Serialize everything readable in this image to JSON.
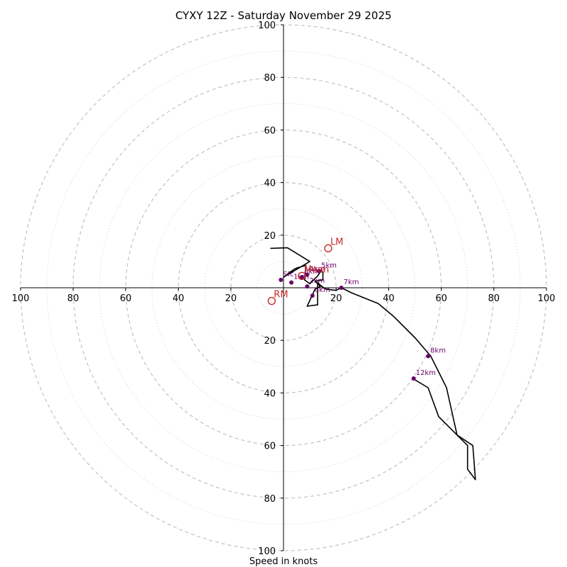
{
  "chart": {
    "title": "CYXY 12Z - Saturday November 29 2025",
    "xlabel": "Speed in knots"
  },
  "chart_data": {
    "type": "scatter",
    "title": "CYXY 12Z - Saturday November 29 2025",
    "xlabel": "Speed in knots",
    "ylabel": "",
    "xlim": [
      -100,
      100
    ],
    "ylim": [
      -100,
      100
    ],
    "major_rings": [
      20,
      40,
      60,
      80,
      100
    ],
    "minor_rings": [
      10,
      30,
      50,
      70,
      90
    ],
    "tick_labels": [
      "20",
      "40",
      "60",
      "80",
      "100"
    ],
    "ring_colors": {
      "major": "#bdbdbd",
      "minor": "#d6d6d6"
    },
    "series": [
      {
        "name": "hodograph",
        "color": "#000000",
        "points": [
          [
            -5,
            15
          ],
          [
            1.5,
            15.2
          ],
          [
            10,
            10
          ],
          [
            0,
            4
          ],
          [
            4,
            7
          ],
          [
            5,
            7.5
          ],
          [
            8.5,
            8.5
          ],
          [
            8,
            3
          ],
          [
            10,
            1.5
          ],
          [
            13,
            4.5
          ],
          [
            14,
            6
          ],
          [
            15,
            6
          ],
          [
            15,
            3
          ],
          [
            12,
            2.5
          ],
          [
            14,
            0.5
          ],
          [
            12,
            -0.5
          ],
          [
            9,
            -7
          ],
          [
            13,
            -6.5
          ],
          [
            13,
            2
          ],
          [
            14,
            1
          ],
          [
            16,
            -0.5
          ],
          [
            20,
            -1
          ],
          [
            22,
            0
          ],
          [
            26,
            -2
          ],
          [
            36,
            -6
          ],
          [
            42,
            -11
          ],
          [
            50,
            -19
          ],
          [
            56,
            -26
          ],
          [
            62,
            -38
          ],
          [
            66,
            -56
          ],
          [
            72,
            -60
          ],
          [
            73,
            -73
          ],
          [
            70,
            -69
          ],
          [
            70,
            -60
          ],
          [
            66,
            -56
          ],
          [
            59,
            -49
          ],
          [
            55,
            -38
          ],
          [
            50,
            -35
          ]
        ]
      }
    ],
    "height_markers": {
      "color": "#6a006a",
      "points": [
        {
          "label": "5km",
          "u": 13.5,
          "v": 6.3
        },
        {
          "label": "4km",
          "u": 9,
          "v": 5
        },
        {
          "label": "3km",
          "u": 7,
          "v": 4
        },
        {
          "label": "2km",
          "u": 9,
          "v": 0.5
        },
        {
          "label": "1km",
          "u": 3,
          "v": 2
        },
        {
          "label": "6km",
          "u": 11,
          "v": -3
        },
        {
          "label": "7km",
          "u": 22,
          "v": 0
        },
        {
          "label": "8km",
          "u": 55,
          "v": -26
        },
        {
          "label": "12km",
          "u": 49.5,
          "v": -34.5
        },
        {
          "label": "Sfc",
          "u": -1,
          "v": 3
        }
      ]
    },
    "storm_motion": [
      {
        "label": "LM",
        "u": 17,
        "v": 15,
        "color": "#c62828"
      },
      {
        "label": "RM",
        "u": -4.5,
        "v": -5,
        "color": "#c62828"
      },
      {
        "label": "Mean",
        "u": 7,
        "v": 4.5,
        "color": "#c62828"
      }
    ]
  }
}
